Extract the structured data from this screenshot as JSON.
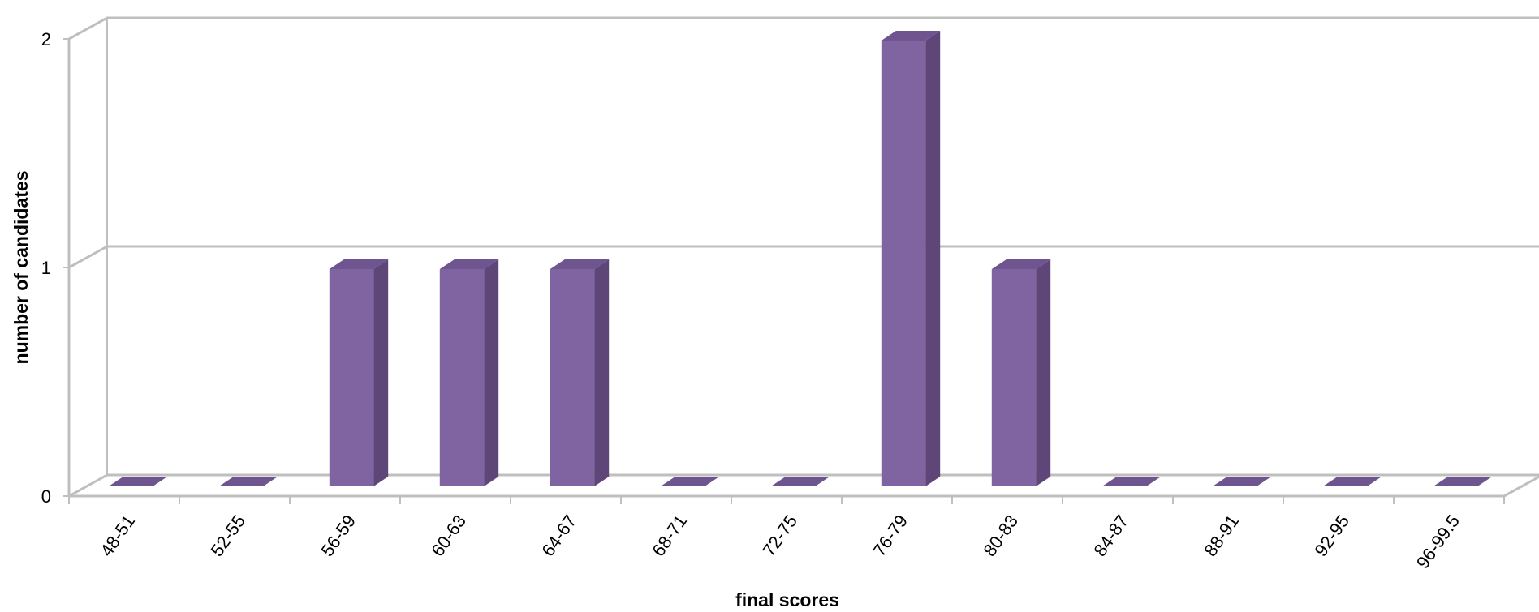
{
  "chart_data": {
    "type": "bar",
    "style": "3d-column",
    "title": "",
    "xlabel": "final scores",
    "ylabel": "number of candidates",
    "categories": [
      "48-51",
      "52-55",
      "56-59",
      "60-63",
      "64-67",
      "68-71",
      "72-75",
      "76-79",
      "80-83",
      "84-87",
      "88-91",
      "92-95",
      "96-99.5"
    ],
    "values": [
      0,
      0,
      1,
      1,
      1,
      0,
      0,
      2,
      1,
      0,
      0,
      0,
      0
    ],
    "yticks": [
      "0",
      "1",
      "2"
    ],
    "ylim": [
      0,
      2
    ],
    "grid": true,
    "legend": "none",
    "colors": {
      "bar_front": "#8064A2",
      "bar_side": "#5E4679",
      "bar_top": "#6F5590",
      "gridline": "#BFBFBF"
    }
  }
}
